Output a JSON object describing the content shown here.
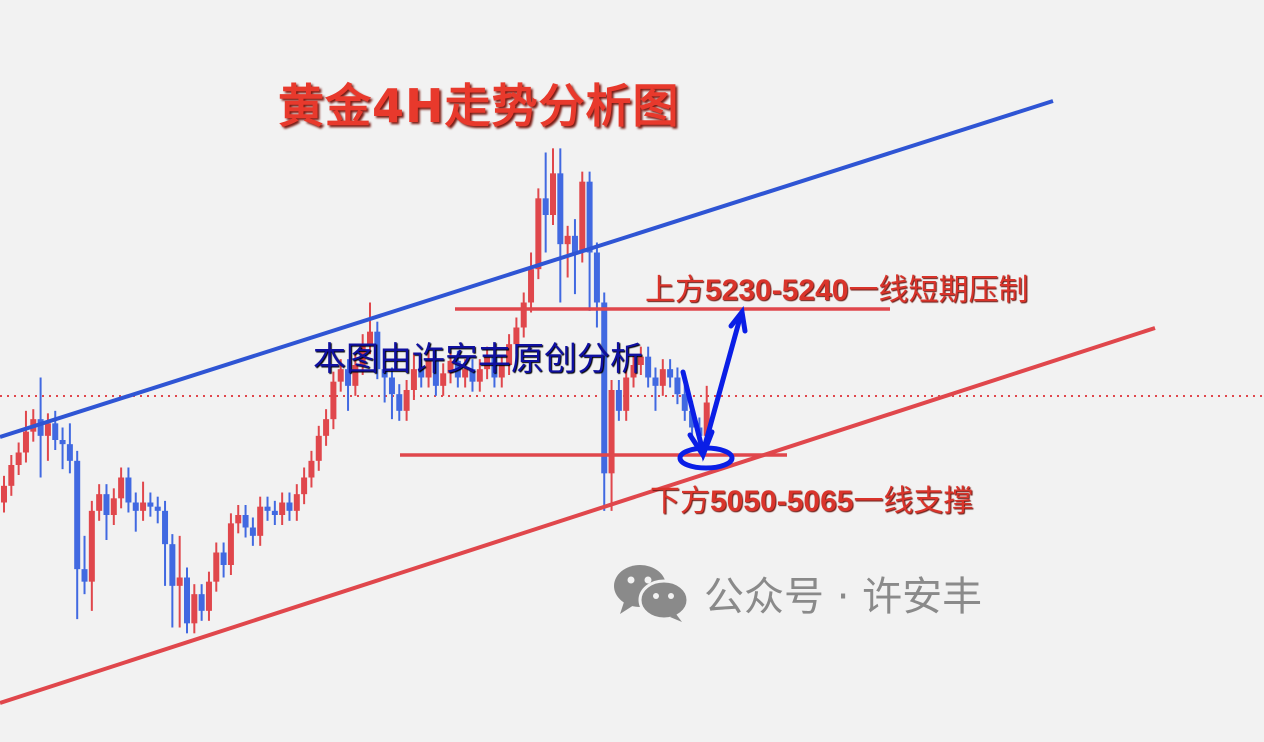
{
  "chart_data": {
    "type": "candlestick",
    "title": "黄金4H走势分析图",
    "colors": {
      "up": "#e0474c",
      "down": "#4169e1",
      "channel_upper": "#2f55d4",
      "channel_lower": "#e0474c",
      "levels": "#e0474c",
      "arrow": "#0a1ee6"
    },
    "grid": false,
    "open": [
      5000,
      5020,
      5045,
      5060,
      5085,
      5100,
      5080,
      5095,
      5075,
      5070,
      5050,
      4920,
      4905,
      4990,
      5010,
      4985,
      5005,
      5030,
      5000,
      4990,
      5000,
      4995,
      4990,
      4950,
      4900,
      4910,
      4855,
      4890,
      4870,
      4905,
      4940,
      4925,
      4975,
      4985,
      4970,
      4960,
      4995,
      4990,
      4985,
      5000,
      4990,
      5010,
      5030,
      5050,
      5080,
      5100,
      5145,
      5160,
      5140,
      5165,
      5190,
      5205,
      5160,
      5150,
      5130,
      5110,
      5135,
      5160,
      5150,
      5170,
      5140,
      5155,
      5170,
      5150,
      5160,
      5145,
      5160,
      5175,
      5150,
      5165,
      5190,
      5210,
      5240,
      5280,
      5365,
      5345,
      5395,
      5310,
      5320,
      5300,
      5385,
      5300,
      5240,
      5035,
      5135,
      5110,
      5150,
      5165,
      5175,
      5150,
      5140,
      5160,
      5150,
      5130,
      5110,
      5090,
      5080
    ],
    "high": [
      5032,
      5057,
      5072,
      5110,
      5112,
      5150,
      5107,
      5110,
      5090,
      5095,
      5062,
      4960,
      5002,
      5022,
      5022,
      5017,
      5042,
      5042,
      5012,
      5025,
      5012,
      5007,
      5002,
      4962,
      4960,
      4922,
      4902,
      4902,
      4917,
      4952,
      4952,
      4987,
      4997,
      4997,
      4982,
      5007,
      5007,
      5002,
      5012,
      5012,
      5022,
      5042,
      5062,
      5092,
      5112,
      5157,
      5172,
      5172,
      5177,
      5202,
      5240,
      5217,
      5180,
      5162,
      5142,
      5147,
      5180,
      5172,
      5182,
      5182,
      5167,
      5182,
      5182,
      5172,
      5172,
      5172,
      5187,
      5187,
      5177,
      5202,
      5222,
      5252,
      5300,
      5377,
      5420,
      5425,
      5425,
      5332,
      5340,
      5397,
      5397,
      5312,
      5252,
      5147,
      5147,
      5162,
      5177,
      5187,
      5187,
      5162,
      5172,
      5172,
      5162,
      5142,
      5122,
      5102,
      5140
    ],
    "low": [
      4988,
      5008,
      5033,
      5048,
      5073,
      5030,
      5050,
      5063,
      5040,
      5035,
      4860,
      4890,
      4870,
      4978,
      4955,
      4973,
      4993,
      4988,
      4965,
      4978,
      4983,
      4975,
      4900,
      4850,
      4850,
      4843,
      4843,
      4858,
      4858,
      4893,
      4910,
      4913,
      4963,
      4958,
      4948,
      4948,
      4978,
      4973,
      4973,
      4978,
      4978,
      4998,
      5018,
      5038,
      5068,
      5088,
      5133,
      5110,
      5128,
      5153,
      5178,
      5148,
      5120,
      5100,
      5098,
      5098,
      5123,
      5138,
      5138,
      5128,
      5128,
      5143,
      5138,
      5138,
      5133,
      5133,
      5148,
      5138,
      5138,
      5153,
      5178,
      5198,
      5228,
      5268,
      5300,
      5333,
      5240,
      5270,
      5250,
      5288,
      5230,
      5210,
      4990,
      4990,
      5098,
      5098,
      5138,
      5153,
      5138,
      5110,
      5128,
      5138,
      5118,
      5098,
      5078,
      5068,
      5068
    ],
    "close": [
      5020,
      5045,
      5060,
      5085,
      5100,
      5080,
      5095,
      5075,
      5070,
      5050,
      4920,
      4905,
      4990,
      5010,
      4985,
      5005,
      5030,
      5000,
      4990,
      5000,
      4995,
      4990,
      4950,
      4900,
      4910,
      4855,
      4890,
      4870,
      4905,
      4940,
      4925,
      4975,
      4985,
      4970,
      4960,
      4995,
      4990,
      4985,
      5000,
      4990,
      5010,
      5030,
      5050,
      5080,
      5100,
      5145,
      5160,
      5140,
      5165,
      5190,
      5205,
      5160,
      5150,
      5130,
      5110,
      5135,
      5160,
      5150,
      5170,
      5140,
      5155,
      5170,
      5150,
      5160,
      5145,
      5160,
      5175,
      5150,
      5165,
      5190,
      5210,
      5240,
      5280,
      5365,
      5345,
      5395,
      5310,
      5320,
      5300,
      5385,
      5300,
      5240,
      5035,
      5135,
      5110,
      5150,
      5165,
      5175,
      5150,
      5140,
      5160,
      5150,
      5130,
      5110,
      5090,
      5080,
      5120
    ],
    "annotations": {
      "resistance": {
        "prefix": "上方",
        "range": "5230-5240",
        "suffix": "一线短期压制",
        "low": 5230,
        "high": 5240
      },
      "support": {
        "prefix": "下方",
        "range": "5050-5065",
        "suffix": "一线支撑",
        "low": 5050,
        "high": 5065
      },
      "author_note": "本图由许安丰原创分析"
    }
  },
  "watermark": {
    "icon": "wechat-icon",
    "text": "公众号 · 许安丰"
  }
}
